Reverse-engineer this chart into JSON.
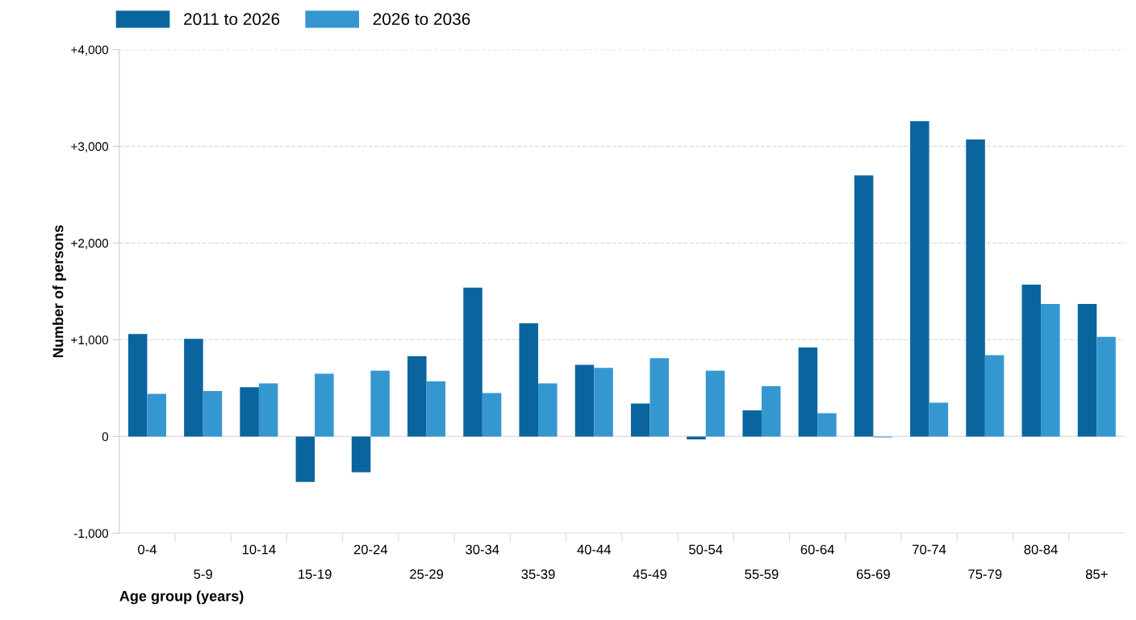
{
  "chart_data": {
    "type": "bar",
    "categories": [
      "0-4",
      "5-9",
      "10-14",
      "15-19",
      "20-24",
      "25-29",
      "30-34",
      "35-39",
      "40-44",
      "45-49",
      "50-54",
      "55-59",
      "60-64",
      "65-69",
      "70-74",
      "75-79",
      "80-84",
      "85+"
    ],
    "series": [
      {
        "name": "2011 to 2026",
        "color": "#0a659e",
        "values": [
          1060,
          1010,
          510,
          -470,
          -370,
          830,
          1540,
          1170,
          740,
          340,
          -30,
          270,
          920,
          2700,
          3260,
          3070,
          1570,
          1370
        ]
      },
      {
        "name": "2026 to 2036",
        "color": "#3597d0",
        "values": [
          440,
          470,
          550,
          650,
          680,
          570,
          450,
          550,
          710,
          810,
          680,
          520,
          240,
          -10,
          350,
          840,
          1370,
          1030
        ]
      }
    ],
    "xlabel": "Age group (years)",
    "ylabel": "Number of persons",
    "ylim": [
      -1000,
      4000
    ],
    "yticks": [
      {
        "value": -1000,
        "label": "-1,000"
      },
      0,
      {
        "value": 1000,
        "label": "+1,000"
      },
      {
        "value": 2000,
        "label": "+2,000"
      },
      {
        "value": 3000,
        "label": "+3,000"
      },
      {
        "value": 4000,
        "label": "+4,000"
      }
    ],
    "grid": "y",
    "legend": "top left"
  }
}
